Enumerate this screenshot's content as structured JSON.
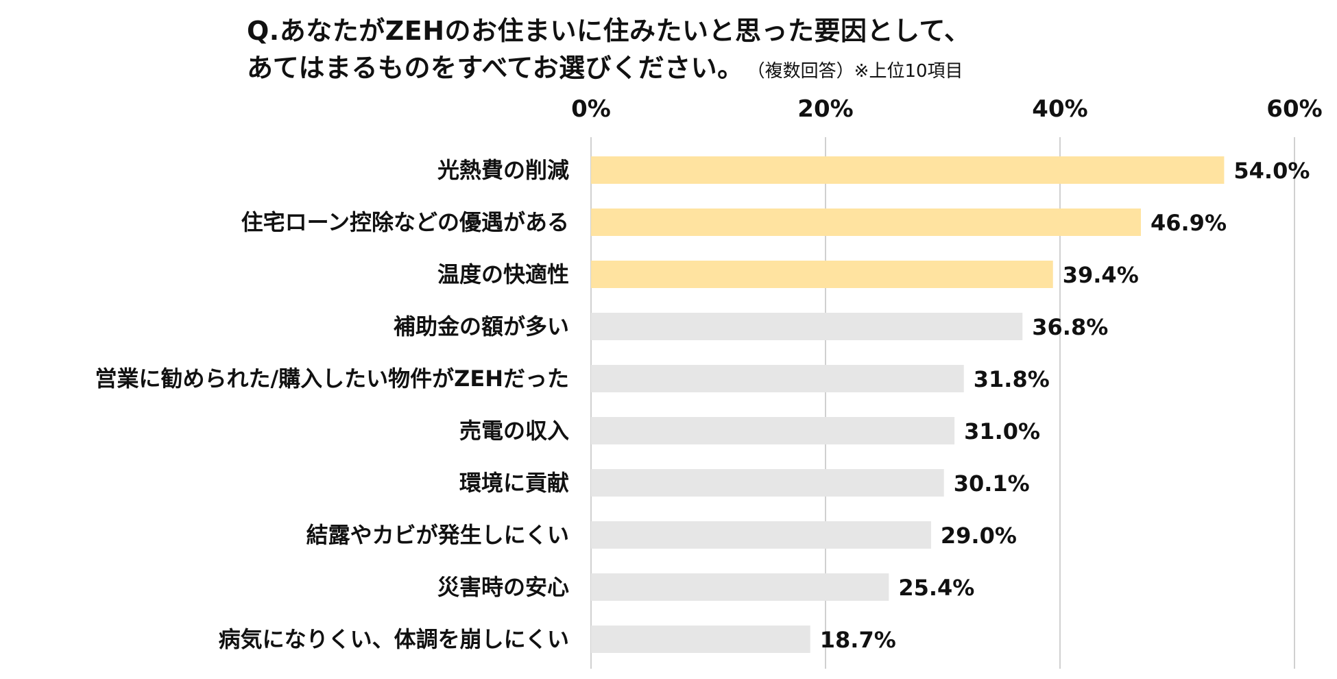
{
  "header": {
    "title_line1": "Q.あなたがZEHのお住まいに住みたいと思った要因として、",
    "title_line2": "あてはまるものをすべてお選びください。",
    "note": "（複数回答）※上位10項目"
  },
  "chart_data": {
    "type": "bar",
    "orientation": "horizontal",
    "title": "Q.あなたがZEHのお住まいに住みたいと思った要因として、あてはまるものをすべてお選びください。",
    "subtitle": "（複数回答）※上位10項目",
    "xlabel": "",
    "ylabel": "",
    "xlim": [
      0,
      60
    ],
    "x_ticks": [
      0,
      20,
      40,
      60
    ],
    "tick_labels": [
      "0%",
      "20%",
      "40%",
      "60%"
    ],
    "grid": true,
    "categories": [
      "光熱費の削減",
      "住宅ローン控除などの優遇がある",
      "温度の快適性",
      "補助金の額が多い",
      "営業に勧められた/購入したい物件がZEHだった",
      "売電の収入",
      "環境に貢献",
      "結露やカビが発生しにくい",
      "災害時の安心",
      "病気になりくい、体調を崩しにくい"
    ],
    "values": [
      54.0,
      46.9,
      39.4,
      36.8,
      31.8,
      31.0,
      30.1,
      29.0,
      25.4,
      18.7
    ],
    "value_labels": [
      "54.0%",
      "46.9%",
      "39.4%",
      "36.8%",
      "31.8%",
      "31.0%",
      "30.1%",
      "29.0%",
      "25.4%",
      "18.7%"
    ],
    "highlight_count": 3,
    "colors": {
      "highlight": "#FFE3A0",
      "default": "#E6E6E6",
      "grid": "#D0D0D0",
      "text": "#111111"
    }
  }
}
